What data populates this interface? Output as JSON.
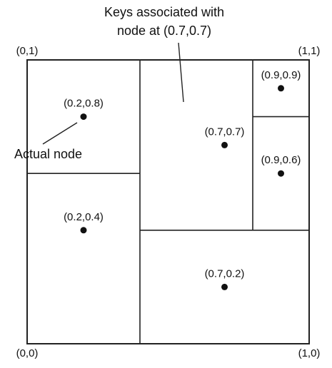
{
  "annotations": {
    "top_line1": "Keys associated with",
    "top_line2": "node at (0.7,0.7)",
    "actual_node": "Actual node"
  },
  "corners": {
    "top_left": "(0,1)",
    "top_right": "(1,1)",
    "bottom_left": "(0,0)",
    "bottom_right": "(1,0)"
  },
  "points": [
    {
      "label": "(0.2,0.8)",
      "x": 0.2,
      "y": 0.8
    },
    {
      "label": "(0.7,0.7)",
      "x": 0.7,
      "y": 0.7
    },
    {
      "label": "(0.9,0.9)",
      "x": 0.9,
      "y": 0.9
    },
    {
      "label": "(0.9,0.6)",
      "x": 0.9,
      "y": 0.6
    },
    {
      "label": "(0.2,0.4)",
      "x": 0.2,
      "y": 0.4
    },
    {
      "label": "(0.7,0.2)",
      "x": 0.7,
      "y": 0.2
    }
  ],
  "partition": {
    "vertical_splits": [
      {
        "x": 0.4,
        "y_from": 0.0,
        "y_to": 1.0
      },
      {
        "x": 0.8,
        "y_from": 0.4,
        "y_to": 1.0
      }
    ],
    "horizontal_splits": [
      {
        "y": 0.6,
        "x_from": 0.0,
        "x_to": 0.4
      },
      {
        "y": 0.4,
        "x_from": 0.4,
        "x_to": 1.0
      },
      {
        "y": 0.8,
        "x_from": 0.8,
        "x_to": 1.0
      }
    ]
  },
  "colors": {
    "stroke": "#222222",
    "point": "#111111",
    "background": "#ffffff"
  }
}
